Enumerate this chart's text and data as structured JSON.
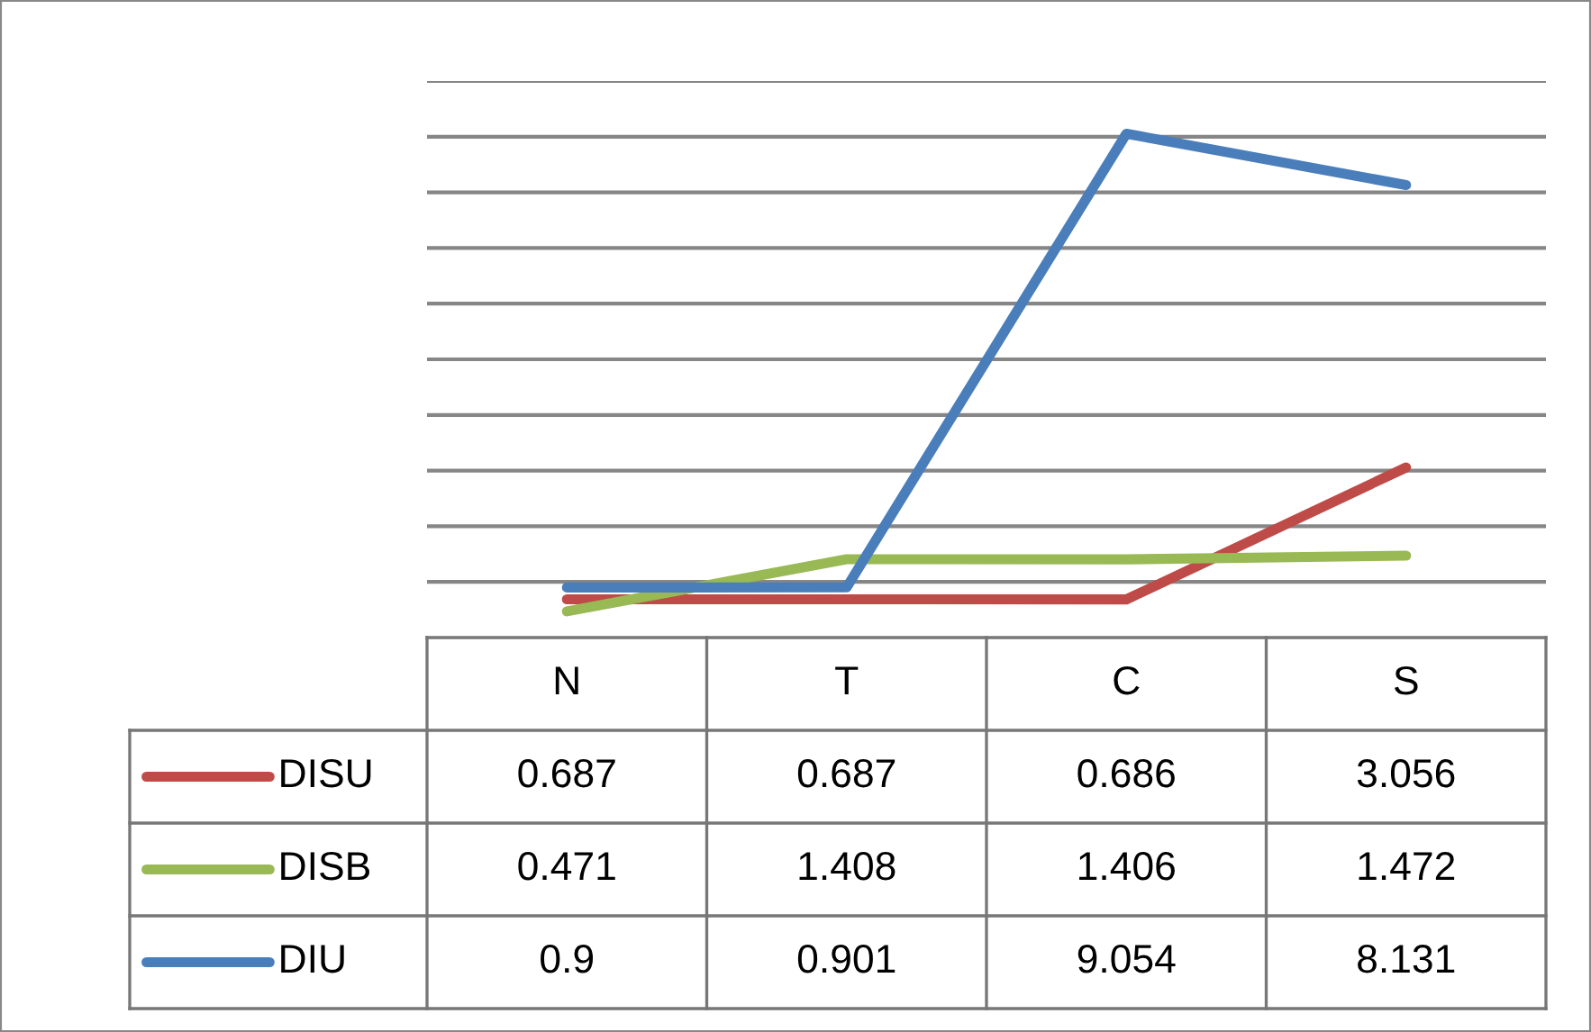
{
  "chart_data": {
    "type": "line",
    "categories": [
      "N",
      "T",
      "C",
      "S"
    ],
    "series": [
      {
        "name": "DISU",
        "color": "#be4b48",
        "values": [
          0.687,
          0.687,
          0.686,
          3.056
        ]
      },
      {
        "name": "DISB",
        "color": "#98b954",
        "values": [
          0.471,
          1.408,
          1.406,
          1.472
        ]
      },
      {
        "name": "DIU",
        "color": "#4a7ebb",
        "values": [
          0.9,
          0.901,
          9.054,
          8.131
        ]
      }
    ],
    "ylim": [
      0,
      10
    ],
    "yticks": [
      {
        "value": 1,
        "label": null
      },
      {
        "value": 2,
        "label": null
      },
      {
        "value": 3,
        "label": null
      },
      {
        "value": 4,
        "label": null
      },
      {
        "value": 5,
        "label": null
      },
      {
        "value": 6,
        "label": null
      },
      {
        "value": 7,
        "label": null
      },
      {
        "value": 8,
        "label": null
      },
      {
        "value": 9,
        "label": null
      },
      {
        "value": 10,
        "label": null
      }
    ],
    "grid": "y",
    "tick_labels": "x",
    "data_labels": true,
    "legend": "bottom left",
    "marker": "none",
    "line_style": "solid"
  }
}
